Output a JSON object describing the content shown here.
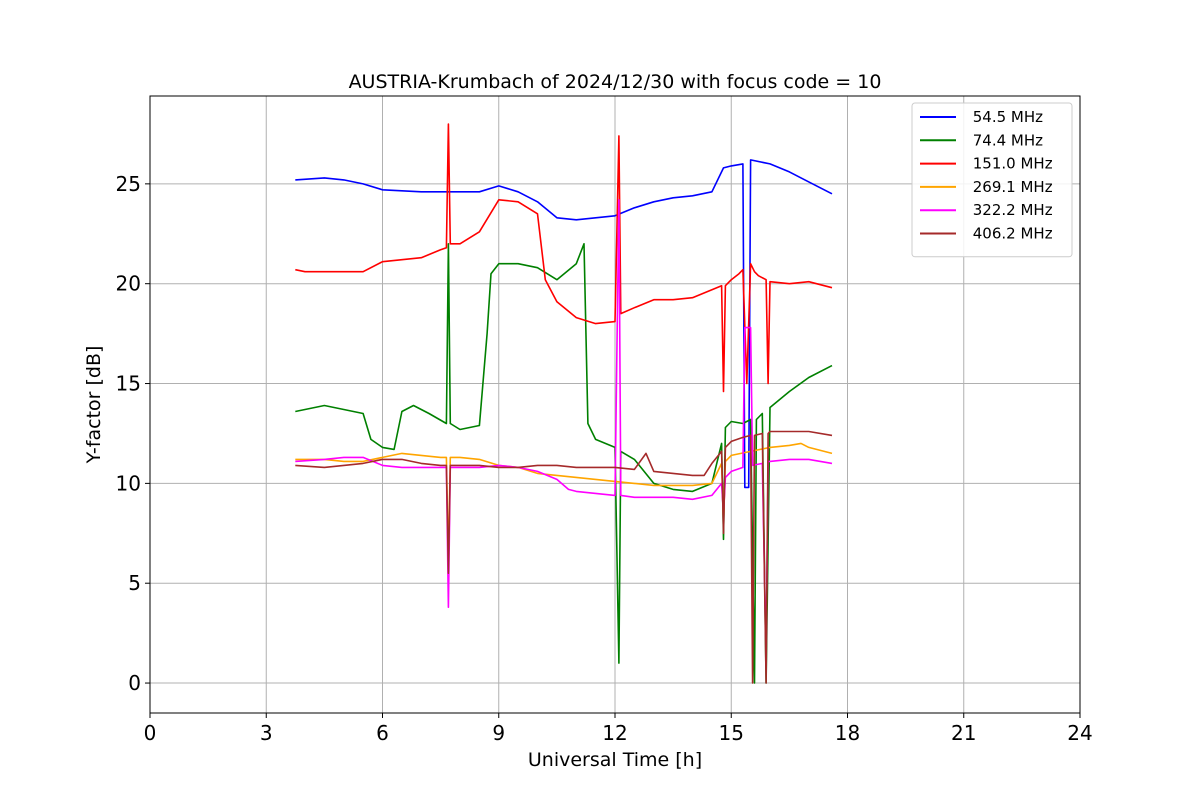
{
  "chart_data": {
    "type": "line",
    "title": "AUSTRIA-Krumbach of 2024/12/30 with focus code = 10",
    "xlabel": "Universal Time [h]",
    "ylabel": "Y-factor [dB]",
    "xlim": [
      0,
      24
    ],
    "ylim": [
      -1.5,
      29.4
    ],
    "xticks": [
      0,
      3,
      6,
      9,
      12,
      15,
      18,
      21,
      24
    ],
    "yticks": [
      0,
      5,
      10,
      15,
      20,
      25
    ],
    "grid": true,
    "legend_position": "top-right",
    "series": [
      {
        "name": " 54.5 MHz",
        "color": "#0000ff",
        "x": [
          3.75,
          4.5,
          5.0,
          5.5,
          6.0,
          7.0,
          7.7,
          8.5,
          9.0,
          9.5,
          10.0,
          10.5,
          11.0,
          11.5,
          12.0,
          12.5,
          13.0,
          13.5,
          14.0,
          14.5,
          14.8,
          15.0,
          15.3,
          15.35,
          15.45,
          15.5,
          16.0,
          16.5,
          17.0,
          17.6
        ],
        "y": [
          25.2,
          25.3,
          25.2,
          25.0,
          24.7,
          24.6,
          24.6,
          24.6,
          24.9,
          24.6,
          24.1,
          23.3,
          23.2,
          23.3,
          23.4,
          23.8,
          24.1,
          24.3,
          24.4,
          24.6,
          25.8,
          25.9,
          26.0,
          9.8,
          9.8,
          26.2,
          26.0,
          25.6,
          25.1,
          24.5
        ]
      },
      {
        "name": " 74.4 MHz",
        "color": "#008000",
        "x": [
          3.75,
          4.0,
          4.5,
          5.0,
          5.5,
          5.7,
          6.0,
          6.3,
          6.5,
          6.8,
          7.2,
          7.65,
          7.7,
          7.75,
          8.0,
          8.5,
          8.7,
          8.8,
          9.0,
          9.5,
          10.0,
          10.5,
          11.0,
          11.2,
          11.3,
          11.5,
          12.0,
          12.1,
          12.15,
          12.5,
          13.0,
          13.5,
          14.0,
          14.5,
          14.75,
          14.8,
          14.85,
          15.0,
          15.3,
          15.5,
          15.6,
          15.65,
          15.8,
          15.9,
          16.0,
          16.5,
          17.0,
          17.6
        ],
        "y": [
          13.6,
          13.7,
          13.9,
          13.7,
          13.5,
          12.2,
          11.8,
          11.7,
          13.6,
          13.9,
          13.5,
          13.0,
          22.0,
          13.0,
          12.7,
          12.9,
          17.5,
          20.5,
          21.0,
          21.0,
          20.8,
          20.2,
          21.0,
          22.0,
          13.0,
          12.2,
          11.8,
          1.0,
          11.6,
          11.2,
          10.0,
          9.7,
          9.6,
          10.0,
          12.0,
          7.2,
          12.8,
          13.1,
          13.0,
          13.2,
          0.0,
          13.2,
          13.5,
          0.0,
          13.8,
          14.6,
          15.3,
          15.9
        ]
      },
      {
        "name": " 151.0 MHz",
        "color": "#ff0000",
        "x": [
          3.75,
          4.0,
          4.5,
          5.0,
          5.5,
          6.0,
          6.5,
          7.0,
          7.5,
          7.65,
          7.7,
          7.75,
          8.0,
          8.5,
          9.0,
          9.5,
          10.0,
          10.2,
          10.5,
          11.0,
          11.5,
          12.0,
          12.1,
          12.15,
          12.5,
          13.0,
          13.5,
          14.0,
          14.5,
          14.75,
          14.8,
          14.85,
          15.0,
          15.2,
          15.3,
          15.4,
          15.5,
          15.6,
          15.7,
          15.9,
          15.95,
          16.0,
          16.5,
          17.0,
          17.6
        ],
        "y": [
          20.7,
          20.6,
          20.6,
          20.6,
          20.6,
          21.1,
          21.2,
          21.3,
          21.7,
          21.8,
          28.0,
          22.0,
          22.0,
          22.6,
          24.2,
          24.1,
          23.5,
          20.2,
          19.1,
          18.3,
          18.0,
          18.1,
          27.4,
          18.5,
          18.8,
          19.2,
          19.2,
          19.3,
          19.7,
          19.9,
          14.6,
          19.9,
          20.2,
          20.5,
          20.7,
          15.0,
          21.0,
          20.6,
          20.4,
          20.2,
          15.0,
          20.1,
          20.0,
          20.1,
          19.8
        ]
      },
      {
        "name": " 269.1 MHz",
        "color": "#ffa500",
        "x": [
          3.75,
          4.5,
          5.0,
          5.5,
          6.0,
          6.5,
          7.0,
          7.5,
          7.65,
          7.7,
          7.75,
          8.0,
          8.5,
          9.0,
          9.5,
          10.0,
          10.5,
          11.0,
          11.5,
          12.0,
          12.5,
          13.0,
          13.5,
          14.0,
          14.5,
          14.75,
          14.8,
          14.85,
          15.0,
          15.5,
          16.0,
          16.5,
          16.8,
          17.0,
          17.6
        ],
        "y": [
          11.2,
          11.2,
          11.1,
          11.1,
          11.3,
          11.5,
          11.4,
          11.3,
          11.3,
          6.0,
          11.3,
          11.3,
          11.2,
          10.9,
          10.8,
          10.5,
          10.4,
          10.3,
          10.2,
          10.1,
          10.0,
          9.9,
          9.9,
          9.9,
          10.0,
          11.0,
          8.0,
          11.1,
          11.4,
          11.6,
          11.8,
          11.9,
          12.0,
          11.8,
          11.5
        ]
      },
      {
        "name": " 322.2 MHz",
        "color": "#ff00ff",
        "x": [
          3.75,
          4.5,
          5.0,
          5.5,
          6.0,
          6.5,
          7.0,
          7.5,
          7.65,
          7.7,
          7.75,
          8.0,
          8.5,
          9.0,
          9.5,
          10.0,
          10.5,
          10.8,
          11.0,
          11.5,
          12.0,
          12.1,
          12.15,
          12.5,
          13.0,
          13.5,
          14.0,
          14.5,
          14.75,
          14.8,
          14.85,
          15.0,
          15.3,
          15.35,
          15.5,
          15.55,
          15.8,
          15.9,
          15.95,
          16.0,
          16.5,
          17.0,
          17.6
        ],
        "y": [
          11.1,
          11.2,
          11.3,
          11.3,
          10.9,
          10.8,
          10.8,
          10.8,
          10.8,
          3.8,
          10.8,
          10.8,
          10.8,
          10.9,
          10.8,
          10.6,
          10.2,
          9.7,
          9.6,
          9.5,
          9.4,
          24.2,
          9.4,
          9.3,
          9.3,
          9.3,
          9.2,
          9.4,
          10.0,
          8.5,
          10.3,
          10.6,
          10.8,
          17.8,
          17.8,
          10.9,
          11.0,
          1.3,
          11.1,
          11.1,
          11.2,
          11.2,
          11.0
        ]
      },
      {
        "name": " 406.2 MHz",
        "color": "#a52a2a",
        "x": [
          3.75,
          4.5,
          5.0,
          5.5,
          6.0,
          6.5,
          7.0,
          7.5,
          7.65,
          7.7,
          7.75,
          8.0,
          8.5,
          9.0,
          9.5,
          10.0,
          10.5,
          11.0,
          11.5,
          12.0,
          12.5,
          12.8,
          13.0,
          13.5,
          14.0,
          14.3,
          14.5,
          14.75,
          14.8,
          14.85,
          15.0,
          15.3,
          15.5,
          15.55,
          15.6,
          15.8,
          15.9,
          15.95,
          16.0,
          16.5,
          17.0,
          17.6
        ],
        "y": [
          10.9,
          10.8,
          10.9,
          11.0,
          11.2,
          11.2,
          11.0,
          10.9,
          10.9,
          5.5,
          10.9,
          10.9,
          10.9,
          10.8,
          10.8,
          10.9,
          10.9,
          10.8,
          10.8,
          10.8,
          10.7,
          11.5,
          10.6,
          10.5,
          10.4,
          10.4,
          11.0,
          11.6,
          7.5,
          11.8,
          12.1,
          12.3,
          12.4,
          0.0,
          12.4,
          12.5,
          0.0,
          12.5,
          12.6,
          12.6,
          12.6,
          12.4
        ]
      }
    ]
  }
}
